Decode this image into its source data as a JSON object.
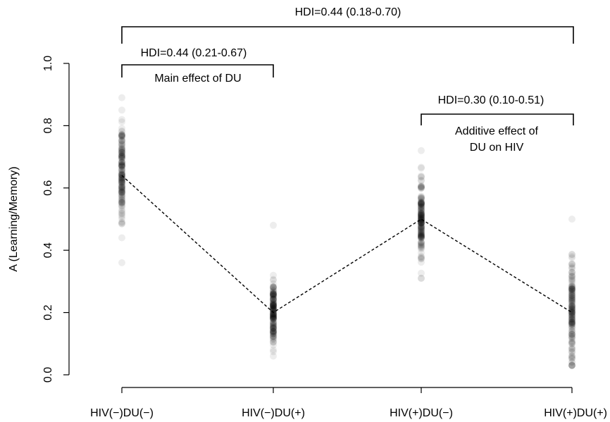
{
  "chart_data": {
    "type": "scatter",
    "ylabel": "A (Learning/Memory)",
    "ylim": [
      0,
      1
    ],
    "yticks": [
      "0.0",
      "0.2",
      "0.4",
      "0.6",
      "0.8",
      "1.0"
    ],
    "categories": [
      "HIV(−)DU(−)",
      "HIV(−)DU(+)",
      "HIV(+)DU(−)",
      "HIV(+)DU(+)"
    ],
    "trend_means": [
      0.64,
      0.2,
      0.5,
      0.2
    ],
    "groups": [
      {
        "min": 0.36,
        "max": 0.89,
        "center": 0.65,
        "spread": 0.08
      },
      {
        "min": 0.06,
        "max": 0.48,
        "center": 0.2,
        "spread": 0.055
      },
      {
        "min": 0.31,
        "max": 0.72,
        "center": 0.5,
        "spread": 0.06
      },
      {
        "min": 0.03,
        "max": 0.5,
        "center": 0.2,
        "spread": 0.08
      }
    ],
    "annotations": [
      {
        "id": "overall",
        "from": 0,
        "to": 3,
        "label": "HDI=0.44 (0.18-0.70)"
      },
      {
        "id": "main",
        "from": 0,
        "to": 1,
        "label": "HDI=0.44 (0.21-0.67)",
        "description": "Main effect of DU"
      },
      {
        "id": "additive",
        "from": 2,
        "to": 3,
        "label": "HDI=0.30 (0.10-0.51)",
        "description_lines": [
          "Additive effect of",
          "DU on HIV"
        ]
      }
    ]
  }
}
